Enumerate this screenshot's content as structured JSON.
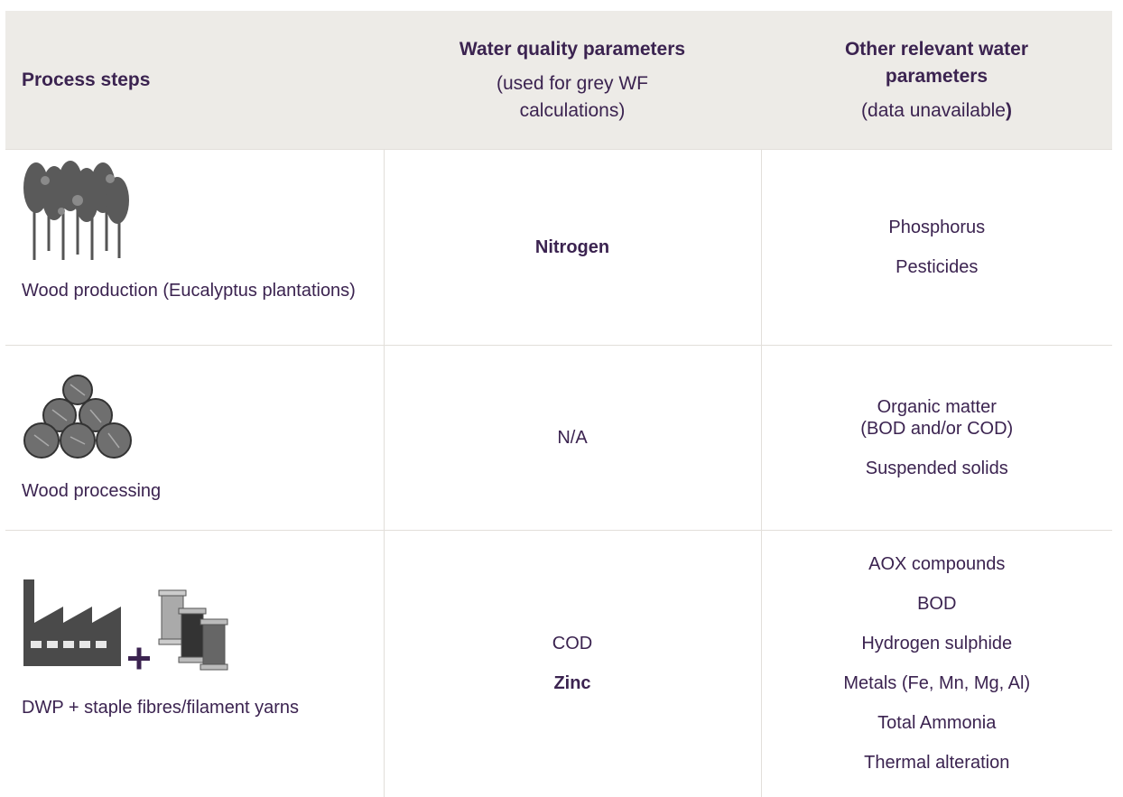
{
  "header": {
    "process": "Process steps",
    "quality": {
      "title": "Water quality parameters",
      "note": "(used for grey WF calculations)"
    },
    "other": {
      "title": "Other relevant water parameters",
      "note": "(data unavailable",
      "note_end": ")"
    }
  },
  "rows": [
    {
      "step": "Wood production (Eucalyptus plantations)",
      "quality": [
        "Nitrogen"
      ],
      "other": [
        "Phosphorus",
        "Pesticides"
      ]
    },
    {
      "step": "Wood processing",
      "quality": [
        "N/A"
      ],
      "other": [
        "Organic matter\n(BOD and/or COD)",
        "Suspended solids"
      ]
    },
    {
      "step": "DWP + staple fibres/filament yarns",
      "quality": [
        "COD",
        "Zinc"
      ],
      "other": [
        "AOX compounds",
        "BOD",
        "Hydrogen sulphide",
        "Metals (Fe, Mn, Mg, Al)",
        "Total Ammonia",
        "Thermal alteration"
      ]
    }
  ]
}
